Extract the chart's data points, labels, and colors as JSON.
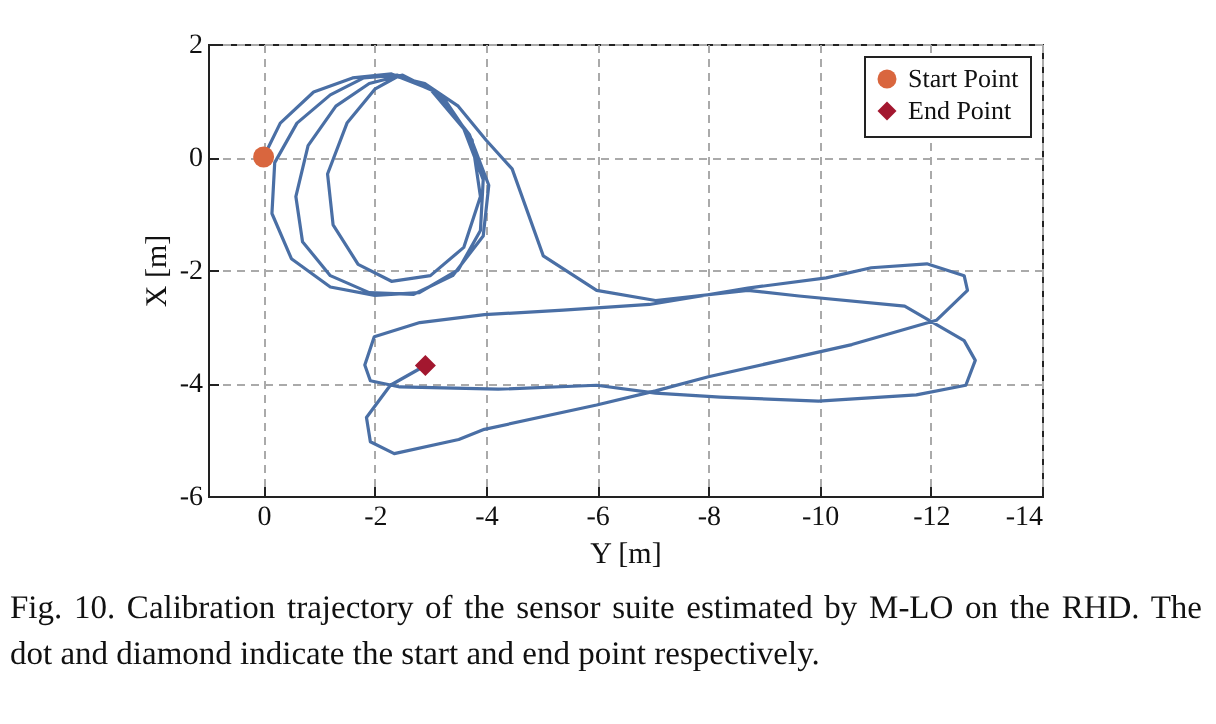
{
  "chart_data": {
    "type": "line",
    "xlabel": "Y [m]",
    "ylabel": "X [m]",
    "xlim": [
      1,
      -14
    ],
    "xticks": [
      0,
      -2,
      -4,
      -6,
      -8,
      -10,
      -12,
      -14
    ],
    "ylim": [
      -6,
      2
    ],
    "yticks": [
      -6,
      -4,
      -2,
      0,
      2
    ],
    "grid": true,
    "legend": "top right",
    "annotations": [
      "Fig. 10.  Calibration trajectory of the sensor suite estimated by M-LO on the RHD. The dot and diamond indicate the start and end point respectively."
    ],
    "series": [
      {
        "color": "#4a6fa5",
        "x": [
          0,
          -0.3,
          -0.9,
          -1.6,
          -2.3,
          -3.0,
          -3.6,
          -3.95,
          -3.9,
          -3.5,
          -2.8,
          -2.0,
          -1.2,
          -0.5,
          -0.15,
          -0.2,
          -0.6,
          -1.2,
          -1.8,
          -2.4,
          -3.1,
          -3.7,
          -4.05,
          -3.95,
          -3.4,
          -2.7,
          -1.9,
          -1.2,
          -0.7,
          -0.58,
          -0.8,
          -1.3,
          -1.9,
          -2.5,
          -3.2,
          -3.75,
          -3.9,
          -3.6,
          -3.0,
          -2.3,
          -1.7,
          -1.25,
          -1.15,
          -1.5,
          -2.0,
          -2.4,
          -2.9,
          -3.5,
          -4.0,
          -4.47,
          -5.03,
          -5.99,
          -7.05,
          -8.71,
          -9.63,
          -11.53,
          -12.6,
          -12.8,
          -12.63,
          -11.74,
          -9.98,
          -8.21,
          -7.05,
          -5.99,
          -4.22,
          -2.45,
          -1.92,
          -1.82,
          -1.99,
          -2.81,
          -3.97,
          -5.39,
          -6.94,
          -8.71,
          -10.12,
          -10.93,
          -11.93,
          -12.6,
          -12.66,
          -12.1,
          -10.58,
          -8.0,
          -7.05,
          -5.99,
          -3.97,
          -3.51,
          -2.35,
          -1.92,
          -1.85,
          -2.28,
          -2.91
        ],
        "values": [
          0,
          0.6,
          1.15,
          1.4,
          1.47,
          1.2,
          0.5,
          -0.4,
          -1.3,
          -2.0,
          -2.4,
          -2.45,
          -2.3,
          -1.8,
          -1.0,
          -0.1,
          0.6,
          1.1,
          1.4,
          1.45,
          1.15,
          0.4,
          -0.5,
          -1.4,
          -2.1,
          -2.43,
          -2.4,
          -2.1,
          -1.5,
          -0.7,
          0.2,
          0.9,
          1.3,
          1.45,
          1.1,
          0.3,
          -0.7,
          -1.6,
          -2.1,
          -2.2,
          -1.9,
          -1.2,
          -0.3,
          0.6,
          1.2,
          1.42,
          1.3,
          0.9,
          0.3,
          -0.21,
          -1.75,
          -2.36,
          -2.54,
          -2.36,
          -2.46,
          -2.64,
          -3.25,
          -3.6,
          -4.04,
          -4.21,
          -4.32,
          -4.25,
          -4.18,
          -4.04,
          -4.11,
          -4.07,
          -3.96,
          -3.68,
          -3.18,
          -2.93,
          -2.79,
          -2.71,
          -2.61,
          -2.32,
          -2.14,
          -1.96,
          -1.89,
          -2.1,
          -2.36,
          -2.89,
          -3.32,
          -3.89,
          -4.14,
          -4.39,
          -4.82,
          -5.0,
          -5.25,
          -5.04,
          -4.61,
          -4.04,
          -3.69
        ]
      },
      {
        "type": "scatter",
        "name": "Start Point",
        "color": "#d9663e",
        "marker": "circle",
        "x": [
          0
        ],
        "values": [
          0
        ]
      },
      {
        "type": "scatter",
        "name": "End Point",
        "color": "#a3172f",
        "marker": "diamond",
        "x": [
          -2.91
        ],
        "values": [
          -3.69
        ]
      }
    ]
  }
}
